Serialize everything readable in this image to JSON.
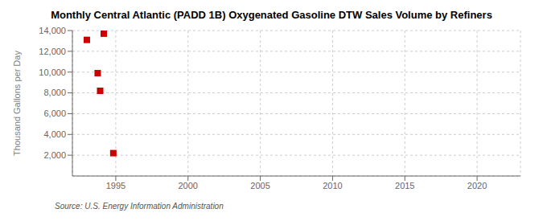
{
  "chart_data": {
    "type": "scatter",
    "title": "Monthly Central Atlantic (PADD 1B) Oxygenated Gasoline DTW Sales Volume by Refiners",
    "ylabel": "Thousand Gallons per Day",
    "annotation": "Source: U.S. Energy Information Administration",
    "x": [
      1993.0,
      1994.17,
      1993.75,
      1993.92,
      1994.83
    ],
    "values": [
      13100,
      13700,
      9900,
      8200,
      2200
    ],
    "color": "#cc0000",
    "marker": "square",
    "xlim": [
      1992.0,
      2023.0
    ],
    "ylim": [
      0,
      14000
    ],
    "xticks": [
      1995,
      2000,
      2005,
      2010,
      2015,
      2020
    ],
    "yticks": [
      {
        "value": 2000,
        "label": "2,000"
      },
      {
        "value": 4000,
        "label": "4,000"
      },
      {
        "value": 6000,
        "label": "6,000"
      },
      {
        "value": 8000,
        "label": "8,000"
      },
      {
        "value": 10000,
        "label": "10,000"
      },
      {
        "value": 12000,
        "label": "12,000"
      },
      {
        "value": 14000,
        "label": "14,000"
      }
    ],
    "grid": true
  }
}
